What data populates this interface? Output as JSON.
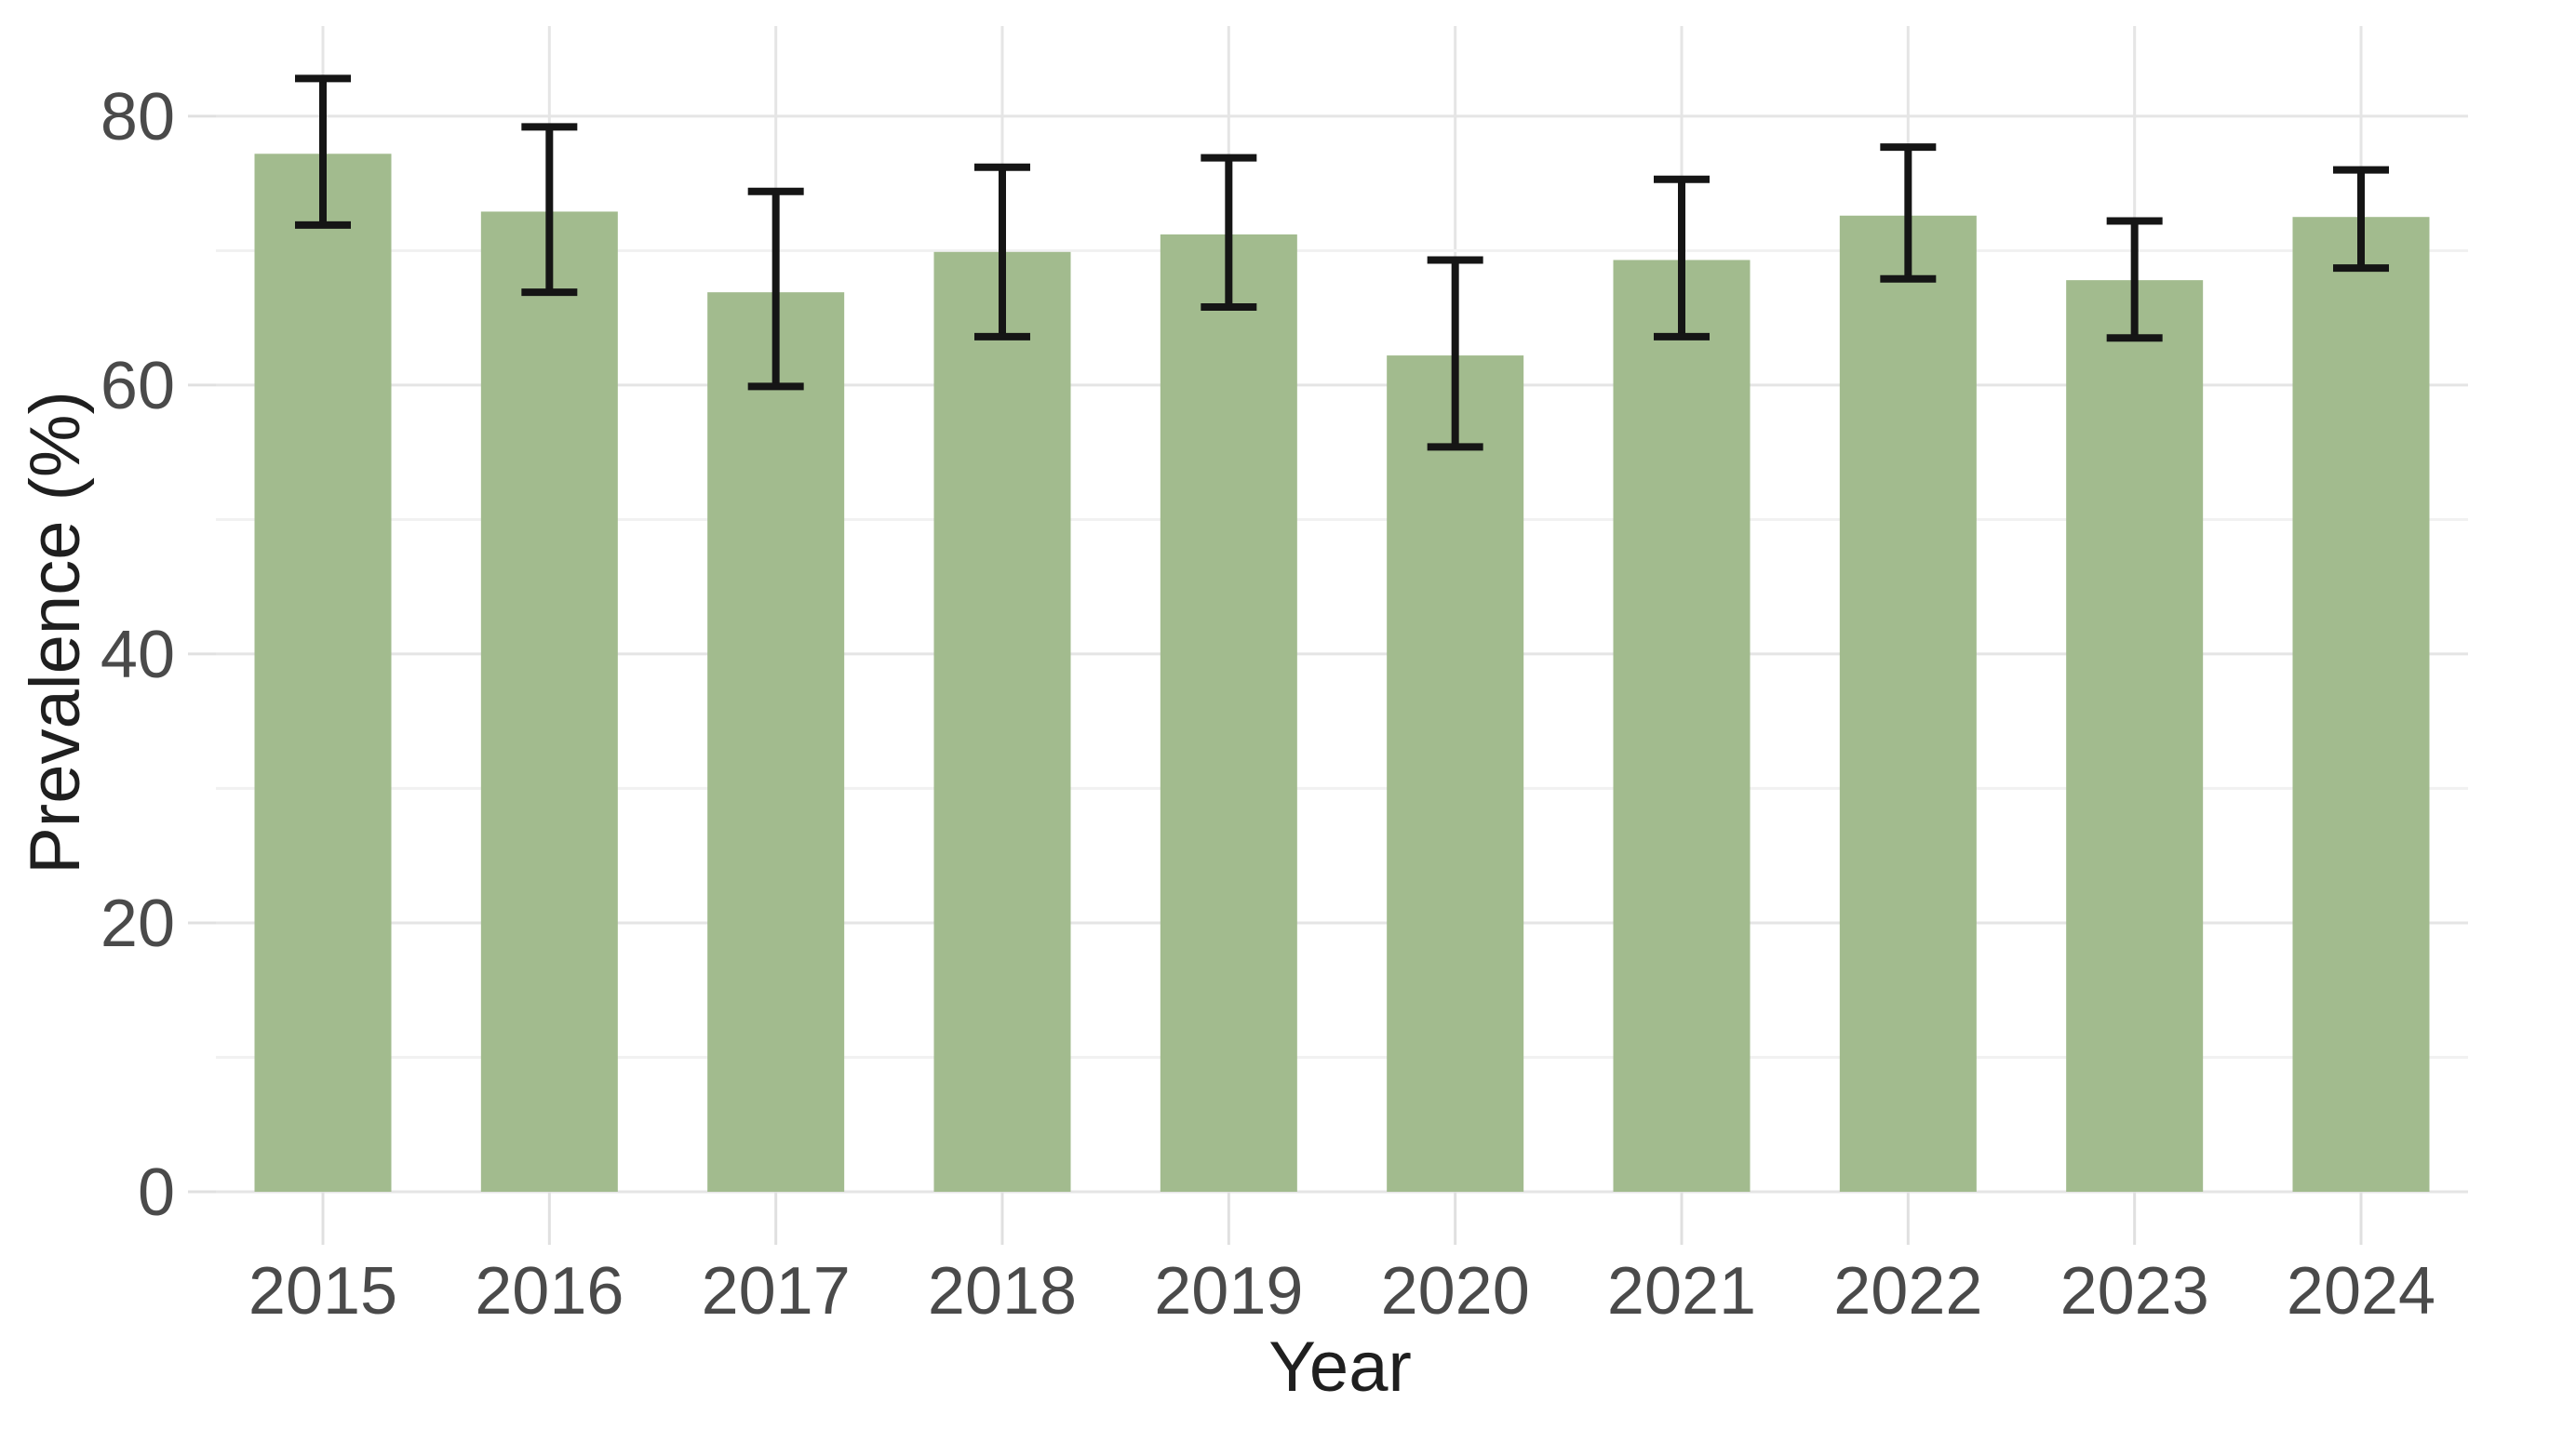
{
  "figure": {
    "kind": "statistical bar chart with error bars",
    "background_color": "#ffffff"
  },
  "chart_data": {
    "type": "bar",
    "title": "",
    "xlabel": "Year",
    "ylabel": "Prevalence (%)",
    "categories": [
      "2015",
      "2016",
      "2017",
      "2018",
      "2019",
      "2020",
      "2021",
      "2022",
      "2023",
      "2024"
    ],
    "series": [
      {
        "name": "Prevalence",
        "values": [
          77.2,
          72.9,
          66.9,
          69.9,
          71.2,
          62.2,
          69.3,
          72.6,
          67.8,
          72.5
        ],
        "error_low": [
          71.9,
          66.9,
          59.9,
          63.6,
          65.8,
          55.4,
          63.6,
          67.9,
          63.5,
          68.7
        ],
        "error_high": [
          82.8,
          79.2,
          74.4,
          76.2,
          76.9,
          69.3,
          75.3,
          77.7,
          72.2,
          76.0
        ]
      }
    ],
    "ylim": [
      0,
      86.7
    ],
    "y_ticks": [
      0,
      20,
      40,
      60,
      80
    ],
    "y_minor_ticks": [
      10,
      30,
      50,
      70
    ],
    "grid": "major horizontal + minor horizontal + major vertical at each year",
    "legend": null,
    "colors": {
      "bar_fill": "#a2bb8e",
      "error_bar": "#151515",
      "grid_major": "#e5e5e5",
      "grid_minor": "#f1f1f1",
      "axis_tick": "#e0e0e0",
      "tick_label": "#4a4a4a",
      "axis_title": "#1f1f1f",
      "background": "#ffffff"
    }
  }
}
